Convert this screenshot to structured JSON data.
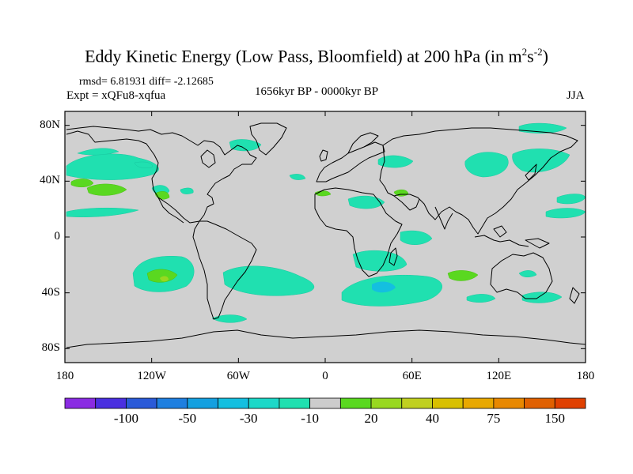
{
  "title": {
    "main": "Eddy Kinetic Energy (Low Pass, Bloomfield) at 200 hPa (in m",
    "sup1": "2",
    "mid": "s",
    "sup2": "-2",
    "end": ")"
  },
  "stats": "rmsd= 6.81931 diff= -2.12685",
  "experiment": "Expt = xQFu8-xqfua",
  "period": "1656kyr BP - 0000kyr BP",
  "season": "JJA",
  "map": {
    "land_color": "#d0d0d0",
    "projection": "cylindrical-equidistant",
    "lat_ticks": [
      {
        "value": 80,
        "label": "80N"
      },
      {
        "value": 40,
        "label": "40N"
      },
      {
        "value": 0,
        "label": "0"
      },
      {
        "value": -40,
        "label": "40S"
      },
      {
        "value": -80,
        "label": "80S"
      }
    ],
    "lon_ticks": [
      {
        "value": -180,
        "label": "180"
      },
      {
        "value": -120,
        "label": "120W"
      },
      {
        "value": -60,
        "label": "60W"
      },
      {
        "value": 0,
        "label": "0"
      },
      {
        "value": 60,
        "label": "60E"
      },
      {
        "value": 120,
        "label": "120E"
      },
      {
        "value": 180,
        "label": "180"
      }
    ]
  },
  "colorbar": {
    "colors": [
      "#8a2be2",
      "#4a2fe0",
      "#2a5ad8",
      "#1e7fe0",
      "#14a0e0",
      "#14bfe0",
      "#1cd8c8",
      "#20e0b0",
      "#cccccc",
      "#5ad820",
      "#98d820",
      "#c0d020",
      "#d8c000",
      "#e8a800",
      "#e88800",
      "#e06000",
      "#e04000"
    ],
    "labels": [
      {
        "after_box": 2,
        "text": "-100"
      },
      {
        "after_box": 4,
        "text": "-50"
      },
      {
        "after_box": 6,
        "text": "-30"
      },
      {
        "after_box": 8,
        "text": "-10"
      },
      {
        "after_box": 10,
        "text": "20"
      },
      {
        "after_box": 12,
        "text": "40"
      },
      {
        "after_box": 14,
        "text": "75"
      },
      {
        "after_box": 16,
        "text": "150"
      }
    ]
  }
}
